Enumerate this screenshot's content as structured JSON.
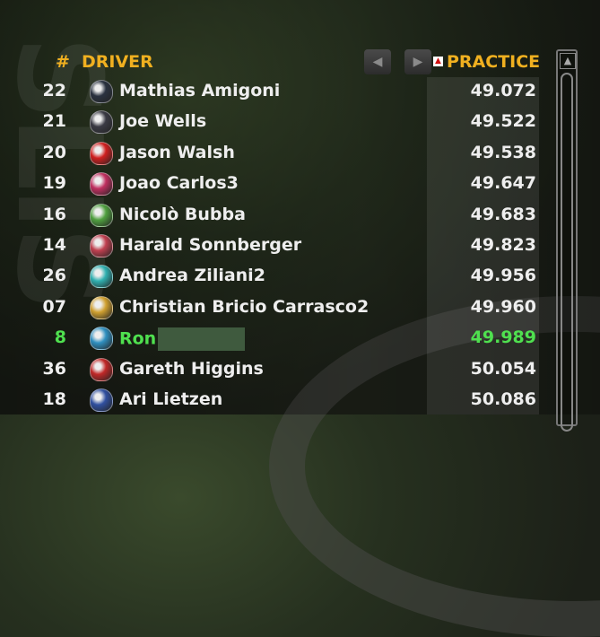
{
  "header": {
    "number": "#",
    "driver": "DRIVER",
    "session": "PRACTICE",
    "prev_icon": "chevron-left-icon",
    "next_icon": "chevron-right-icon",
    "sort_icon": "sort-up-icon"
  },
  "background_text": "SLIS",
  "colors": {
    "header": "#f0b020",
    "player": "#4fe04f",
    "text": "#eeeeee"
  },
  "rows": [
    {
      "num": "22",
      "name": "Mathias Amigoni",
      "time": "49.072",
      "helmet": "#2a3240"
    },
    {
      "num": "21",
      "name": "Joe Wells",
      "time": "49.522",
      "helmet": "#3a3a44"
    },
    {
      "num": "20",
      "name": "Jason Walsh",
      "time": "49.538",
      "helmet": "#d02020"
    },
    {
      "num": "19",
      "name": "Joao Carlos3",
      "time": "49.647",
      "helmet": "#c03060"
    },
    {
      "num": "16",
      "name": "Nicolò Bubba",
      "time": "49.683",
      "helmet": "#50a040"
    },
    {
      "num": "14",
      "name": "Harald Sonnberger",
      "time": "49.823",
      "helmet": "#c04050"
    },
    {
      "num": "26",
      "name": "Andrea Ziliani2",
      "time": "49.956",
      "helmet": "#30b0b0"
    },
    {
      "num": "07",
      "name": "Christian Bricio Carrasco2",
      "time": "49.960",
      "helmet": "#d0a030"
    },
    {
      "num": "8",
      "name": "Ron",
      "time": "49.989",
      "helmet": "#3090c0",
      "player": true
    },
    {
      "num": "36",
      "name": "Gareth Higgins",
      "time": "50.054",
      "helmet": "#c02828"
    },
    {
      "num": "18",
      "name": "Ari Lietzen",
      "time": "50.086",
      "helmet": "#3050a0"
    }
  ]
}
